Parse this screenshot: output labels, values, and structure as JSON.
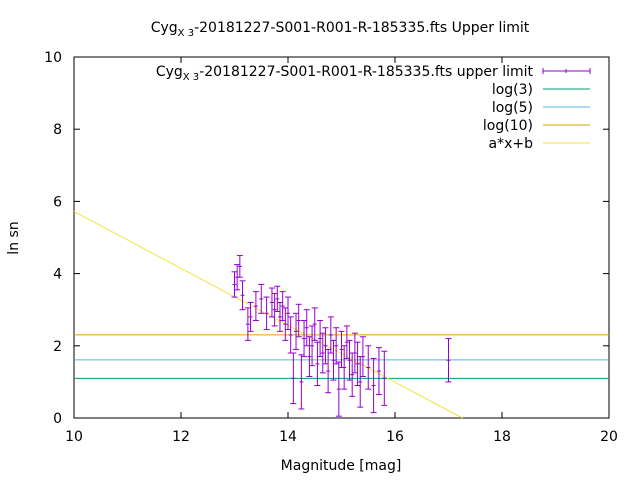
{
  "chart_data": {
    "type": "scatter",
    "title_main": "Cyg",
    "title_sub": "X 3",
    "title_rest": "-20181227-S001-R001-R-185335.fts Upper limit",
    "xlabel": "Magnitude [mag]",
    "ylabel": "ln sn",
    "xlim": [
      10,
      20
    ],
    "ylim": [
      0,
      10
    ],
    "xticks": [
      "10",
      "12",
      "14",
      "16",
      "18",
      "20"
    ],
    "yticks": [
      "0",
      "2",
      "4",
      "6",
      "8",
      "10"
    ],
    "grid": false,
    "legend_position": "top-right",
    "series": [
      {
        "name_main": "Cyg",
        "name_sub": "X 3",
        "name_rest": "-20181227-S001-R001-R-185335.fts upper limit",
        "kind": "errorbar",
        "color": "#9400d3",
        "points": [
          {
            "x": 13.0,
            "y": 3.7,
            "err": 0.35
          },
          {
            "x": 13.05,
            "y": 3.9,
            "err": 0.35
          },
          {
            "x": 13.1,
            "y": 4.2,
            "err": 0.3
          },
          {
            "x": 13.15,
            "y": 3.4,
            "err": 0.4
          },
          {
            "x": 13.25,
            "y": 2.6,
            "err": 0.45
          },
          {
            "x": 13.3,
            "y": 2.8,
            "err": 0.4
          },
          {
            "x": 13.4,
            "y": 3.1,
            "err": 0.4
          },
          {
            "x": 13.5,
            "y": 3.3,
            "err": 0.4
          },
          {
            "x": 13.6,
            "y": 2.9,
            "err": 0.45
          },
          {
            "x": 13.7,
            "y": 3.2,
            "err": 0.4
          },
          {
            "x": 13.75,
            "y": 3.0,
            "err": 0.45
          },
          {
            "x": 13.8,
            "y": 3.3,
            "err": 0.35
          },
          {
            "x": 13.85,
            "y": 2.8,
            "err": 0.4
          },
          {
            "x": 13.9,
            "y": 3.1,
            "err": 0.4
          },
          {
            "x": 13.95,
            "y": 2.6,
            "err": 0.45
          },
          {
            "x": 14.0,
            "y": 2.9,
            "err": 0.45
          },
          {
            "x": 14.05,
            "y": 2.3,
            "err": 0.5
          },
          {
            "x": 14.1,
            "y": 1.1,
            "err": 0.7
          },
          {
            "x": 14.15,
            "y": 2.4,
            "err": 0.5
          },
          {
            "x": 14.2,
            "y": 2.7,
            "err": 0.45
          },
          {
            "x": 14.25,
            "y": 1.0,
            "err": 0.75
          },
          {
            "x": 14.3,
            "y": 2.2,
            "err": 0.5
          },
          {
            "x": 14.35,
            "y": 2.5,
            "err": 0.5
          },
          {
            "x": 14.4,
            "y": 1.7,
            "err": 0.55
          },
          {
            "x": 14.45,
            "y": 2.0,
            "err": 0.55
          },
          {
            "x": 14.5,
            "y": 2.6,
            "err": 0.45
          },
          {
            "x": 14.55,
            "y": 1.5,
            "err": 0.6
          },
          {
            "x": 14.6,
            "y": 2.2,
            "err": 0.5
          },
          {
            "x": 14.65,
            "y": 1.8,
            "err": 0.55
          },
          {
            "x": 14.7,
            "y": 2.0,
            "err": 0.5
          },
          {
            "x": 14.75,
            "y": 1.3,
            "err": 0.6
          },
          {
            "x": 14.8,
            "y": 2.3,
            "err": 0.5
          },
          {
            "x": 14.85,
            "y": 1.6,
            "err": 0.55
          },
          {
            "x": 14.9,
            "y": 2.0,
            "err": 0.5
          },
          {
            "x": 14.95,
            "y": 0.8,
            "err": 0.75
          },
          {
            "x": 15.0,
            "y": 1.9,
            "err": 0.5
          },
          {
            "x": 15.05,
            "y": 1.4,
            "err": 0.6
          },
          {
            "x": 15.1,
            "y": 2.1,
            "err": 0.45
          },
          {
            "x": 15.15,
            "y": 1.6,
            "err": 0.55
          },
          {
            "x": 15.2,
            "y": 1.2,
            "err": 0.6
          },
          {
            "x": 15.25,
            "y": 1.8,
            "err": 0.55
          },
          {
            "x": 15.3,
            "y": 1.5,
            "err": 0.6
          },
          {
            "x": 15.35,
            "y": 1.0,
            "err": 0.7
          },
          {
            "x": 15.4,
            "y": 1.7,
            "err": 0.55
          },
          {
            "x": 15.5,
            "y": 1.4,
            "err": 0.6
          },
          {
            "x": 15.6,
            "y": 0.9,
            "err": 0.75
          },
          {
            "x": 15.7,
            "y": 1.3,
            "err": 0.65
          },
          {
            "x": 15.8,
            "y": 1.1,
            "err": 0.75
          },
          {
            "x": 17.0,
            "y": 1.6,
            "err": 0.6
          }
        ]
      },
      {
        "name": "log(3)",
        "kind": "hline",
        "y": 1.0986,
        "color": "#009e73"
      },
      {
        "name": "log(5)",
        "kind": "hline",
        "y": 1.6094,
        "color": "#56b4e9"
      },
      {
        "name": "log(10)",
        "kind": "hline",
        "y": 2.3026,
        "color": "#e69f00"
      },
      {
        "name": "a*x+b",
        "kind": "fitline",
        "color": "#f0e442",
        "points": [
          [
            10,
            5.72
          ],
          [
            17.26,
            0
          ]
        ]
      }
    ]
  }
}
